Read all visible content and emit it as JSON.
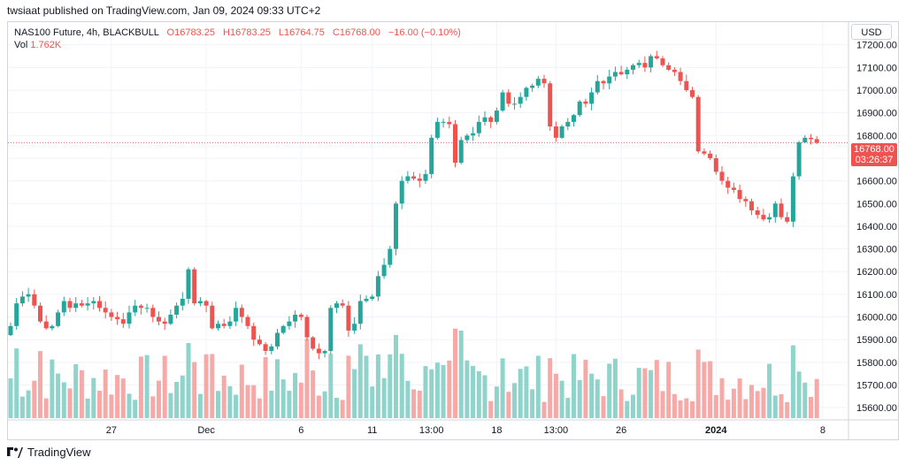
{
  "header": {
    "publisher_line": "twsiaat published on TradingView.com, Jan 09, 2024 09:33 UTC+2"
  },
  "legend": {
    "symbol": "NAS100 Future, 4h, BLACKBULL",
    "open": "O16783.25",
    "high": "H16783.25",
    "low": "L16764.75",
    "close": "C16768.00",
    "change": "−16.00 (−0.10%)",
    "volume_label": "Vol",
    "volume_value": "1.762K"
  },
  "currency": "USD",
  "last_price": {
    "price": "16768.00",
    "countdown": "03:26:37"
  },
  "footer": {
    "brand": "TradingView"
  },
  "colors": {
    "up": "#26a69a",
    "down": "#ef5350",
    "up_volume": "#8fd3cb",
    "down_volume": "#f7a9a7",
    "grid": "#f0f3fa",
    "border": "#d1d4dc"
  },
  "chart_data": {
    "type": "candlestick",
    "y_axis": {
      "min": 15550,
      "max": 17300,
      "ticks": [
        "15600.00",
        "15700.00",
        "15800.00",
        "15900.00",
        "16000.00",
        "16100.00",
        "16200.00",
        "16300.00",
        "16400.00",
        "16500.00",
        "16600.00",
        "16700.00",
        "16800.00",
        "16900.00",
        "17000.00",
        "17100.00",
        "17200.00"
      ]
    },
    "x_axis": {
      "labels": [
        {
          "text": "27",
          "index": 17
        },
        {
          "text": "Dec",
          "index": 33
        },
        {
          "text": "6",
          "index": 49
        },
        {
          "text": "11",
          "index": 61
        },
        {
          "text": "13:00",
          "index": 71
        },
        {
          "text": "18",
          "index": 82
        },
        {
          "text": "13:00",
          "index": 92
        },
        {
          "text": "26",
          "index": 103
        },
        {
          "text": "2024",
          "index": 119
        },
        {
          "text": "8",
          "index": 137
        }
      ]
    },
    "series": [
      {
        "type": "candlestick",
        "close_points": [
          15960,
          16060,
          16090,
          16100,
          16050,
          15980,
          15950,
          15960,
          16020,
          16070,
          16040,
          16060,
          16050,
          16060,
          16070,
          16040,
          16020,
          16000,
          15990,
          15970,
          16020,
          16050,
          16040,
          16040,
          16000,
          15980,
          15970,
          16010,
          16050,
          16080,
          16210,
          16060,
          16070,
          16050,
          15950,
          15970,
          15960,
          15980,
          16040,
          16000,
          15960,
          15900,
          15880,
          15850,
          15870,
          15930,
          15960,
          15980,
          16010,
          16000,
          15910,
          15860,
          15840,
          15850,
          16040,
          16060,
          16050,
          15940,
          15970,
          16070,
          16080,
          16090,
          16180,
          16230,
          16300,
          16500,
          16600,
          16620,
          16610,
          16600,
          16630,
          16790,
          16860,
          16860,
          16850,
          16680,
          16780,
          16800,
          16810,
          16860,
          16880,
          16860,
          16910,
          16990,
          16940,
          16940,
          16970,
          17010,
          17020,
          17050,
          17030,
          16840,
          16790,
          16840,
          16860,
          16890,
          16950,
          16940,
          16990,
          17040,
          17030,
          17060,
          17080,
          17070,
          17090,
          17110,
          17120,
          17100,
          17150,
          17140,
          17110,
          17090,
          17080,
          17040,
          17000,
          16970,
          16730,
          16720,
          16700,
          16640,
          16600,
          16570,
          16560,
          16520,
          16510,
          16470,
          16450,
          16430,
          16440,
          16500,
          16440,
          16420,
          16620,
          16770,
          16790,
          16784,
          16768
        ]
      },
      {
        "type": "volume",
        "name": "Vol",
        "last_value": "1.762K"
      }
    ]
  }
}
